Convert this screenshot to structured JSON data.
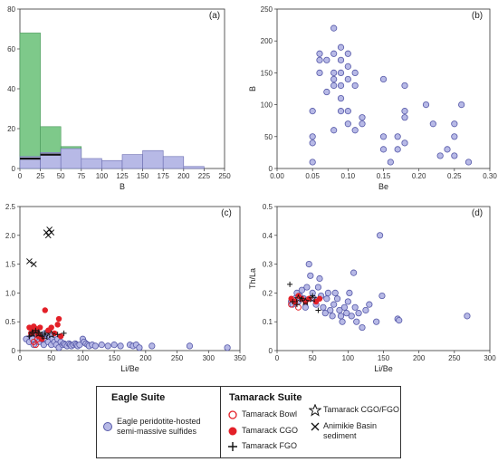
{
  "chart_data": [
    {
      "panel": "(a)",
      "type": "bar",
      "xlabel": "B",
      "ylabel": "Frequency",
      "xlim": [
        0,
        250
      ],
      "ylim": [
        0,
        80
      ],
      "xticks": [
        0,
        25,
        50,
        75,
        100,
        125,
        150,
        175,
        200,
        225,
        250
      ],
      "yticks": [
        0,
        20,
        40,
        60,
        80
      ],
      "bin_edges": [
        0,
        25,
        50,
        75,
        100,
        125,
        150,
        175,
        200,
        225
      ],
      "series": [
        {
          "values": [
            68,
            21,
            11,
            0,
            0,
            0,
            0,
            0,
            0
          ],
          "color": "#7ec98a"
        },
        {
          "values": [
            6,
            8,
            10,
            5,
            4,
            7,
            9,
            6,
            1
          ],
          "color": "#b7b9e6"
        },
        {
          "values": [
            5,
            7,
            0,
            0,
            0,
            0,
            0,
            0,
            0
          ],
          "color": "#111111"
        }
      ]
    },
    {
      "panel": "(b)",
      "type": "scatter",
      "xlabel": "Be",
      "ylabel": "B",
      "xlim": [
        0,
        0.3
      ],
      "ylim": [
        0,
        250
      ],
      "xticks": [
        "0.00",
        "0.05",
        "0.10",
        "0.15",
        "0.20",
        "0.25",
        "0.30"
      ],
      "yticks": [
        0,
        50,
        100,
        150,
        200,
        250
      ],
      "points": [
        [
          0.05,
          10
        ],
        [
          0.05,
          40
        ],
        [
          0.05,
          50
        ],
        [
          0.05,
          90
        ],
        [
          0.06,
          150
        ],
        [
          0.06,
          170
        ],
        [
          0.06,
          180
        ],
        [
          0.07,
          170
        ],
        [
          0.07,
          120
        ],
        [
          0.08,
          220
        ],
        [
          0.08,
          180
        ],
        [
          0.08,
          150
        ],
        [
          0.08,
          140
        ],
        [
          0.08,
          130
        ],
        [
          0.08,
          60
        ],
        [
          0.09,
          190
        ],
        [
          0.09,
          170
        ],
        [
          0.09,
          150
        ],
        [
          0.09,
          130
        ],
        [
          0.09,
          110
        ],
        [
          0.09,
          90
        ],
        [
          0.1,
          180
        ],
        [
          0.1,
          160
        ],
        [
          0.1,
          140
        ],
        [
          0.1,
          90
        ],
        [
          0.1,
          70
        ],
        [
          0.11,
          150
        ],
        [
          0.11,
          130
        ],
        [
          0.11,
          60
        ],
        [
          0.12,
          80
        ],
        [
          0.12,
          70
        ],
        [
          0.15,
          140
        ],
        [
          0.15,
          50
        ],
        [
          0.15,
          30
        ],
        [
          0.16,
          10
        ],
        [
          0.17,
          50
        ],
        [
          0.17,
          30
        ],
        [
          0.18,
          130
        ],
        [
          0.18,
          90
        ],
        [
          0.18,
          80
        ],
        [
          0.18,
          40
        ],
        [
          0.21,
          100
        ],
        [
          0.22,
          70
        ],
        [
          0.23,
          20
        ],
        [
          0.24,
          30
        ],
        [
          0.25,
          70
        ],
        [
          0.25,
          50
        ],
        [
          0.25,
          20
        ],
        [
          0.26,
          100
        ],
        [
          0.27,
          10
        ]
      ]
    },
    {
      "panel": "(c)",
      "type": "scatter",
      "xlabel": "Li/Be",
      "ylabel": "Be",
      "xlim": [
        0,
        350
      ],
      "ylim": [
        0,
        2.5
      ],
      "xticks": [
        0,
        50,
        100,
        150,
        200,
        250,
        300,
        350
      ],
      "yticks": [
        "0",
        "0.5",
        "1.0",
        "1.5",
        "2.0",
        "2.5"
      ],
      "eagle": [
        [
          10,
          0.2
        ],
        [
          15,
          0.15
        ],
        [
          18,
          0.25
        ],
        [
          20,
          0.2
        ],
        [
          22,
          0.1
        ],
        [
          25,
          0.3
        ],
        [
          28,
          0.2
        ],
        [
          30,
          0.15
        ],
        [
          32,
          0.25
        ],
        [
          35,
          0.2
        ],
        [
          38,
          0.1
        ],
        [
          40,
          0.3
        ],
        [
          42,
          0.2
        ],
        [
          45,
          0.15
        ],
        [
          48,
          0.25
        ],
        [
          50,
          0.1
        ],
        [
          52,
          0.2
        ],
        [
          55,
          0.15
        ],
        [
          58,
          0.1
        ],
        [
          60,
          0.2
        ],
        [
          62,
          0.05
        ],
        [
          65,
          0.15
        ],
        [
          68,
          0.1
        ],
        [
          70,
          0.12
        ],
        [
          72,
          0.1
        ],
        [
          75,
          0.08
        ],
        [
          78,
          0.12
        ],
        [
          80,
          0.1
        ],
        [
          82,
          0.08
        ],
        [
          85,
          0.1
        ],
        [
          88,
          0.12
        ],
        [
          90,
          0.1
        ],
        [
          92,
          0.08
        ],
        [
          95,
          0.1
        ],
        [
          100,
          0.2
        ],
        [
          102,
          0.15
        ],
        [
          105,
          0.12
        ],
        [
          108,
          0.1
        ],
        [
          110,
          0.08
        ],
        [
          115,
          0.1
        ],
        [
          120,
          0.08
        ],
        [
          130,
          0.1
        ],
        [
          140,
          0.08
        ],
        [
          150,
          0.1
        ],
        [
          160,
          0.08
        ],
        [
          175,
          0.1
        ],
        [
          180,
          0.08
        ],
        [
          185,
          0.1
        ],
        [
          190,
          0.05
        ],
        [
          210,
          0.08
        ],
        [
          270,
          0.08
        ],
        [
          330,
          0.05
        ]
      ],
      "tamarack_cgo": [
        [
          15,
          0.4
        ],
        [
          18,
          0.3
        ],
        [
          20,
          0.35
        ],
        [
          22,
          0.42
        ],
        [
          25,
          0.38
        ],
        [
          28,
          0.3
        ],
        [
          30,
          0.25
        ],
        [
          32,
          0.4
        ],
        [
          35,
          0.2
        ],
        [
          40,
          0.7
        ],
        [
          45,
          0.35
        ],
        [
          50,
          0.4
        ],
        [
          55,
          0.3
        ],
        [
          60,
          0.45
        ],
        [
          62,
          0.55
        ],
        [
          65,
          0.25
        ]
      ],
      "tamarack_bowl": [
        [
          18,
          0.3
        ],
        [
          22,
          0.15
        ],
        [
          25,
          0.1
        ],
        [
          28,
          0.2
        ],
        [
          30,
          0.25
        ]
      ],
      "tamarack_fgo": [
        [
          15,
          0.25
        ],
        [
          20,
          0.3
        ],
        [
          25,
          0.35
        ],
        [
          30,
          0.3
        ],
        [
          35,
          0.25
        ],
        [
          40,
          0.3
        ],
        [
          60,
          0.28
        ],
        [
          70,
          0.3
        ]
      ],
      "tamarack_cgo_fgo": [
        [
          20,
          0.3
        ],
        [
          30,
          0.3
        ],
        [
          40,
          0.25
        ],
        [
          50,
          0.28
        ]
      ],
      "animikie": [
        [
          15,
          1.55
        ],
        [
          22,
          1.5
        ],
        [
          42,
          2.05
        ],
        [
          45,
          2.0
        ],
        [
          47,
          2.1
        ],
        [
          50,
          2.05
        ]
      ]
    },
    {
      "panel": "(d)",
      "type": "scatter",
      "xlabel": "Li/Be",
      "ylabel": "Th/La",
      "xlim": [
        0,
        300
      ],
      "ylim": [
        0,
        0.5
      ],
      "xticks": [
        0,
        50,
        100,
        150,
        200,
        250,
        300
      ],
      "yticks": [
        "0",
        "0.1",
        "0.2",
        "0.3",
        "0.4",
        "0.5"
      ],
      "eagle": [
        [
          20,
          0.17
        ],
        [
          22,
          0.16
        ],
        [
          25,
          0.18
        ],
        [
          28,
          0.2
        ],
        [
          30,
          0.17
        ],
        [
          32,
          0.19
        ],
        [
          35,
          0.21
        ],
        [
          38,
          0.18
        ],
        [
          40,
          0.15
        ],
        [
          42,
          0.22
        ],
        [
          45,
          0.3
        ],
        [
          47,
          0.26
        ],
        [
          50,
          0.2
        ],
        [
          52,
          0.18
        ],
        [
          55,
          0.16
        ],
        [
          58,
          0.22
        ],
        [
          60,
          0.25
        ],
        [
          62,
          0.19
        ],
        [
          65,
          0.15
        ],
        [
          68,
          0.13
        ],
        [
          70,
          0.18
        ],
        [
          72,
          0.2
        ],
        [
          75,
          0.14
        ],
        [
          78,
          0.12
        ],
        [
          80,
          0.16
        ],
        [
          82,
          0.2
        ],
        [
          85,
          0.18
        ],
        [
          88,
          0.14
        ],
        [
          90,
          0.12
        ],
        [
          92,
          0.1
        ],
        [
          95,
          0.15
        ],
        [
          98,
          0.13
        ],
        [
          100,
          0.17
        ],
        [
          102,
          0.2
        ],
        [
          105,
          0.12
        ],
        [
          108,
          0.27
        ],
        [
          110,
          0.15
        ],
        [
          112,
          0.1
        ],
        [
          115,
          0.13
        ],
        [
          120,
          0.08
        ],
        [
          125,
          0.14
        ],
        [
          130,
          0.16
        ],
        [
          140,
          0.1
        ],
        [
          145,
          0.4
        ],
        [
          148,
          0.19
        ],
        [
          170,
          0.11
        ],
        [
          172,
          0.105
        ],
        [
          268,
          0.12
        ]
      ],
      "tamarack_cgo": [
        [
          20,
          0.18
        ],
        [
          25,
          0.17
        ],
        [
          30,
          0.19
        ],
        [
          35,
          0.18
        ],
        [
          40,
          0.17
        ],
        [
          45,
          0.18
        ],
        [
          55,
          0.17
        ],
        [
          60,
          0.18
        ]
      ],
      "tamarack_bowl": [
        [
          20,
          0.16
        ],
        [
          25,
          0.17
        ],
        [
          30,
          0.15
        ]
      ],
      "tamarack_fgo": [
        [
          18,
          0.23
        ],
        [
          22,
          0.17
        ],
        [
          28,
          0.16
        ],
        [
          35,
          0.18
        ],
        [
          50,
          0.19
        ],
        [
          58,
          0.14
        ]
      ],
      "tamarack_cgo_fgo": [
        [
          30,
          0.18
        ],
        [
          40,
          0.17
        ],
        [
          50,
          0.18
        ]
      ],
      "animikie": []
    }
  ],
  "legend": {
    "eagle_title": "Eagle Suite",
    "eagle_item": [
      "Eagle peridotite-hosted",
      "semi-massive sulfides"
    ],
    "tamarack_title": "Tamarack Suite",
    "tamarack_bowl": "Tamarack Bowl",
    "tamarack_cgo_fgo": "Tamarack CGO/FGO",
    "tamarack_cgo": "Tamarack CGO",
    "animikie": "Animikie Basin sediment",
    "tamarack_fgo": "Tamarack FGO"
  },
  "colors": {
    "eagle_fill": "#b7b9e6",
    "eagle_stroke": "#5558a8",
    "tamarack_red": "#e32028",
    "green_bar": "#7ec98a"
  }
}
